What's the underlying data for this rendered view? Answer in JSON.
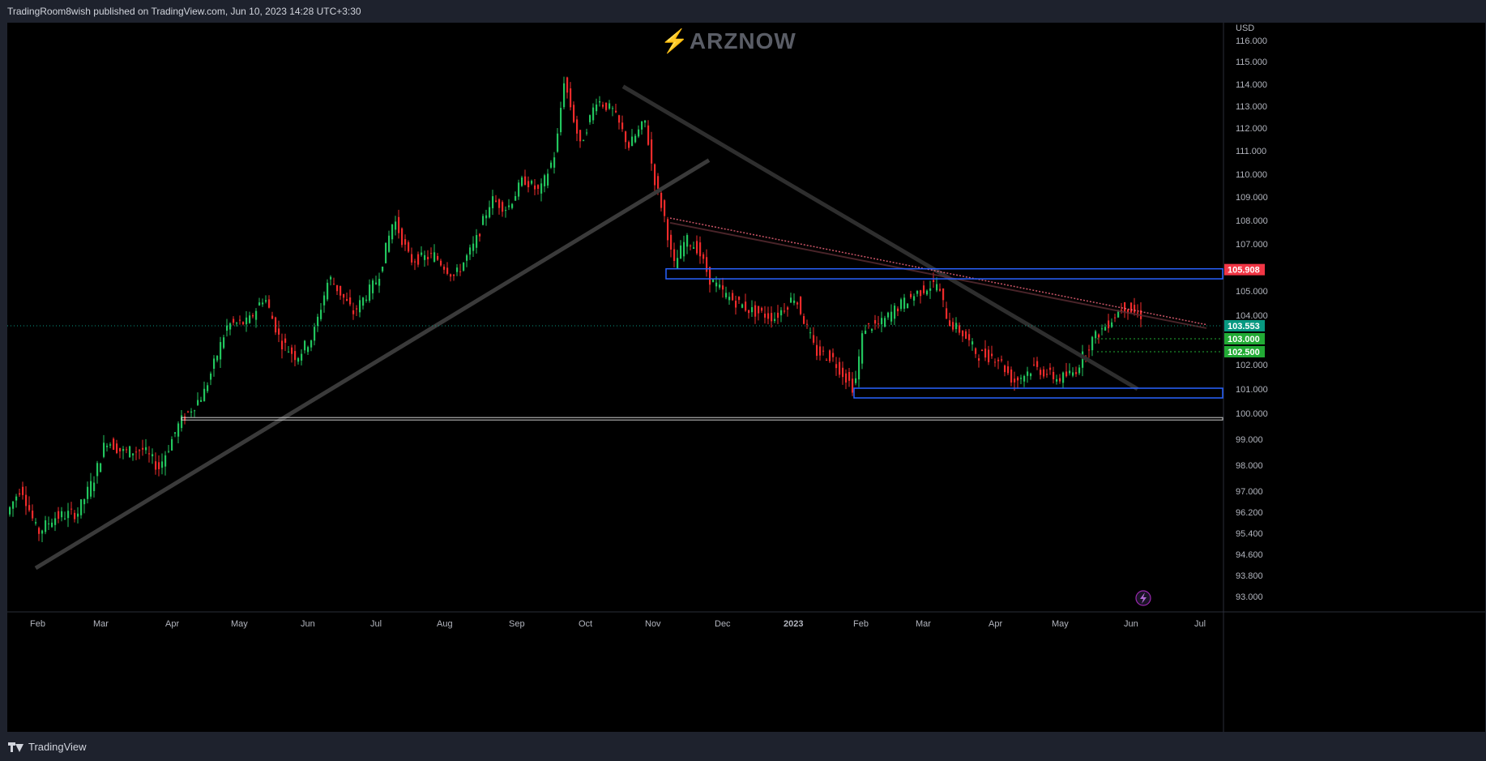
{
  "header": {
    "publish_info": "TradingRoom8wish published on TradingView.com, Jun 10, 2023 14:28 UTC+3:30"
  },
  "watermark": {
    "text": "ARZNOW"
  },
  "footer": {
    "brand": "TradingView"
  },
  "colors": {
    "background": "#000000",
    "frame": "#1e222d",
    "up_candle": "#22c55e",
    "down_candle": "#ef2b2b",
    "axis_text": "#b2b5be",
    "price_tag_red": "#f23645",
    "price_tag_teal": "#089981",
    "price_tag_green": "#22ab35",
    "zone_blue": "#2962ff",
    "trendline_gray": "#3a3a3a",
    "pink_line": "#ff6b81"
  },
  "icons": [
    "lightning-icon",
    "tradingview-logo-icon"
  ],
  "chart_data": {
    "type": "candlestick",
    "currency_label": "USD",
    "y_ticks": [
      "116.000",
      "115.000",
      "114.000",
      "113.000",
      "112.000",
      "111.000",
      "110.000",
      "109.000",
      "108.000",
      "107.000",
      "105.000",
      "104.000",
      "102.000",
      "101.000",
      "100.000",
      "99.000",
      "98.000",
      "97.000",
      "96.200",
      "95.400",
      "94.600",
      "93.800",
      "93.000"
    ],
    "y_tick_values": [
      116,
      115,
      114,
      113,
      112,
      111,
      110,
      109,
      108,
      107,
      105,
      104,
      102,
      101,
      100,
      99,
      98,
      97,
      96.2,
      95.4,
      94.6,
      93.8,
      93
    ],
    "x_ticks": [
      "Feb",
      "Mar",
      "Apr",
      "May",
      "Jun",
      "Jul",
      "Aug",
      "Sep",
      "Oct",
      "Nov",
      "Dec",
      "2023",
      "Feb",
      "Mar",
      "Apr",
      "May",
      "Jun",
      "Jul"
    ],
    "price_tags": [
      {
        "label": "105.908",
        "value": 105.908,
        "color": "#f23645"
      },
      {
        "label": "103.553",
        "value": 103.553,
        "color": "#089981"
      },
      {
        "label": "103.000",
        "value": 103.0,
        "color": "#22ab35"
      },
      {
        "label": "102.500",
        "value": 102.5,
        "color": "#22ab35"
      }
    ],
    "key_closes": [
      [
        "Feb 2022",
        95.5
      ],
      [
        "Mar",
        98.5
      ],
      [
        "Apr",
        98.0
      ],
      [
        "May",
        103.9
      ],
      [
        "Jun",
        103.5
      ],
      [
        "Jul",
        108.0
      ],
      [
        "Aug",
        105.5
      ],
      [
        "Sep",
        110.0
      ],
      [
        "Sep end",
        114.5
      ],
      [
        "Oct",
        113.0
      ],
      [
        "Nov",
        110.5
      ],
      [
        "Dec",
        104.5
      ],
      [
        "Jan 2023",
        103.0
      ],
      [
        "Feb",
        101.0
      ],
      [
        "Mar",
        105.5
      ],
      [
        "Apr",
        101.8
      ],
      [
        "May",
        101.3
      ],
      [
        "Jun",
        104.5
      ],
      [
        "Jun 10",
        103.553
      ]
    ]
  }
}
